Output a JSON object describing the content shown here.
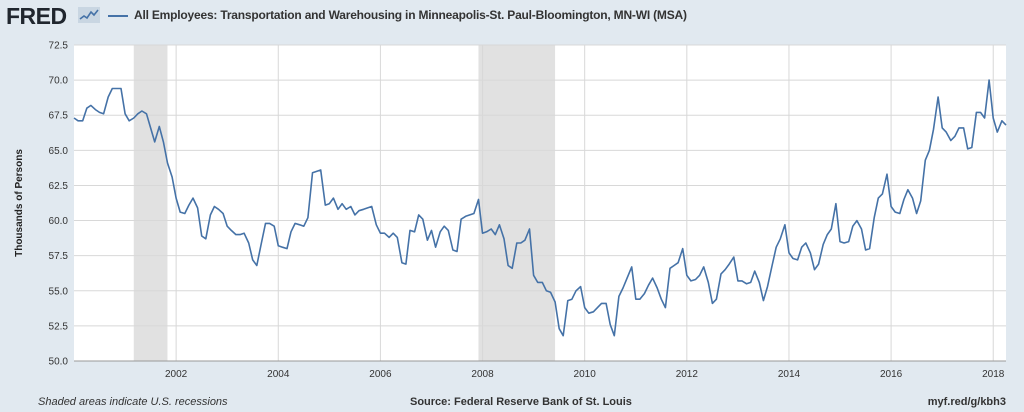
{
  "header": {
    "logo_text": "FRED",
    "logo_icon": "sparkline-icon",
    "legend_color": "#4572a7"
  },
  "footer": {
    "recession_note": "Shaded areas indicate U.S. recessions",
    "source": "Source: Federal Reserve Bank of St. Louis",
    "short_link": "myf.red/g/kbh3"
  },
  "chart_data": {
    "type": "line",
    "title": "All Employees: Transportation and Warehousing in Minneapolis-St. Paul-Bloomington, MN-WI (MSA)",
    "ylabel": "Thousands of Persons",
    "xlabel": "",
    "ylim": [
      50.0,
      72.5
    ],
    "xlim": [
      2000.0,
      2018.25
    ],
    "y_ticks": [
      "50.0",
      "52.5",
      "55.0",
      "57.5",
      "60.0",
      "62.5",
      "65.0",
      "67.5",
      "70.0",
      "72.5"
    ],
    "x_ticks": [
      "2002",
      "2004",
      "2006",
      "2008",
      "2010",
      "2012",
      "2014",
      "2016",
      "2018"
    ],
    "grid": true,
    "recessions": [
      [
        2001.17,
        2001.83
      ],
      [
        2007.92,
        2009.42
      ]
    ],
    "series": [
      {
        "color": "#4572a7",
        "points": [
          [
            2000.0,
            67.3
          ],
          [
            2000.08,
            67.1
          ],
          [
            2000.17,
            67.1
          ],
          [
            2000.25,
            68.0
          ],
          [
            2000.33,
            68.2
          ],
          [
            2000.42,
            67.9
          ],
          [
            2000.5,
            67.7
          ],
          [
            2000.58,
            67.6
          ],
          [
            2000.67,
            68.8
          ],
          [
            2000.75,
            69.4
          ],
          [
            2000.83,
            69.4
          ],
          [
            2000.92,
            69.4
          ],
          [
            2001.0,
            67.6
          ],
          [
            2001.08,
            67.1
          ],
          [
            2001.17,
            67.3
          ],
          [
            2001.25,
            67.6
          ],
          [
            2001.33,
            67.8
          ],
          [
            2001.42,
            67.6
          ],
          [
            2001.5,
            66.6
          ],
          [
            2001.58,
            65.6
          ],
          [
            2001.67,
            66.7
          ],
          [
            2001.75,
            65.6
          ],
          [
            2001.83,
            64.1
          ],
          [
            2001.92,
            63.1
          ],
          [
            2002.0,
            61.6
          ],
          [
            2002.08,
            60.6
          ],
          [
            2002.17,
            60.5
          ],
          [
            2002.25,
            61.1
          ],
          [
            2002.33,
            61.6
          ],
          [
            2002.42,
            60.9
          ],
          [
            2002.5,
            58.9
          ],
          [
            2002.58,
            58.7
          ],
          [
            2002.67,
            60.4
          ],
          [
            2002.75,
            61.0
          ],
          [
            2002.83,
            60.8
          ],
          [
            2002.92,
            60.5
          ],
          [
            2003.0,
            59.6
          ],
          [
            2003.08,
            59.3
          ],
          [
            2003.17,
            59.0
          ],
          [
            2003.25,
            59.0
          ],
          [
            2003.33,
            59.1
          ],
          [
            2003.42,
            58.4
          ],
          [
            2003.5,
            57.2
          ],
          [
            2003.58,
            56.8
          ],
          [
            2003.67,
            58.4
          ],
          [
            2003.75,
            59.8
          ],
          [
            2003.83,
            59.8
          ],
          [
            2003.92,
            59.6
          ],
          [
            2004.0,
            58.2
          ],
          [
            2004.08,
            58.1
          ],
          [
            2004.17,
            58.0
          ],
          [
            2004.25,
            59.2
          ],
          [
            2004.33,
            59.8
          ],
          [
            2004.42,
            59.7
          ],
          [
            2004.5,
            59.6
          ],
          [
            2004.58,
            60.2
          ],
          [
            2004.67,
            63.4
          ],
          [
            2004.75,
            63.5
          ],
          [
            2004.83,
            63.6
          ],
          [
            2004.92,
            61.1
          ],
          [
            2005.0,
            61.2
          ],
          [
            2005.08,
            61.6
          ],
          [
            2005.17,
            60.8
          ],
          [
            2005.25,
            61.2
          ],
          [
            2005.33,
            60.8
          ],
          [
            2005.42,
            61.0
          ],
          [
            2005.5,
            60.4
          ],
          [
            2005.58,
            60.7
          ],
          [
            2005.67,
            60.8
          ],
          [
            2005.75,
            60.9
          ],
          [
            2005.83,
            61.0
          ],
          [
            2005.92,
            59.7
          ],
          [
            2006.0,
            59.1
          ],
          [
            2006.08,
            59.1
          ],
          [
            2006.17,
            58.8
          ],
          [
            2006.25,
            59.1
          ],
          [
            2006.33,
            58.8
          ],
          [
            2006.42,
            57.0
          ],
          [
            2006.5,
            56.9
          ],
          [
            2006.58,
            59.3
          ],
          [
            2006.67,
            59.2
          ],
          [
            2006.75,
            60.4
          ],
          [
            2006.83,
            60.1
          ],
          [
            2006.92,
            58.6
          ],
          [
            2007.0,
            59.3
          ],
          [
            2007.08,
            58.1
          ],
          [
            2007.17,
            59.2
          ],
          [
            2007.25,
            59.6
          ],
          [
            2007.33,
            59.3
          ],
          [
            2007.42,
            57.9
          ],
          [
            2007.5,
            57.8
          ],
          [
            2007.58,
            60.1
          ],
          [
            2007.67,
            60.3
          ],
          [
            2007.75,
            60.4
          ],
          [
            2007.83,
            60.5
          ],
          [
            2007.92,
            61.5
          ],
          [
            2008.0,
            59.1
          ],
          [
            2008.08,
            59.2
          ],
          [
            2008.17,
            59.4
          ],
          [
            2008.25,
            59.0
          ],
          [
            2008.33,
            59.7
          ],
          [
            2008.42,
            58.7
          ],
          [
            2008.5,
            56.8
          ],
          [
            2008.58,
            56.6
          ],
          [
            2008.67,
            58.4
          ],
          [
            2008.75,
            58.4
          ],
          [
            2008.83,
            58.6
          ],
          [
            2008.92,
            59.4
          ],
          [
            2009.0,
            56.1
          ],
          [
            2009.08,
            55.6
          ],
          [
            2009.17,
            55.6
          ],
          [
            2009.25,
            55.0
          ],
          [
            2009.33,
            54.9
          ],
          [
            2009.42,
            54.2
          ],
          [
            2009.5,
            52.3
          ],
          [
            2009.58,
            51.8
          ],
          [
            2009.67,
            54.3
          ],
          [
            2009.75,
            54.4
          ],
          [
            2009.83,
            55.0
          ],
          [
            2009.92,
            55.3
          ],
          [
            2010.0,
            53.8
          ],
          [
            2010.08,
            53.4
          ],
          [
            2010.17,
            53.5
          ],
          [
            2010.25,
            53.8
          ],
          [
            2010.33,
            54.1
          ],
          [
            2010.42,
            54.1
          ],
          [
            2010.5,
            52.6
          ],
          [
            2010.58,
            51.8
          ],
          [
            2010.67,
            54.6
          ],
          [
            2010.75,
            55.2
          ],
          [
            2010.83,
            55.9
          ],
          [
            2010.92,
            56.7
          ],
          [
            2011.0,
            54.4
          ],
          [
            2011.08,
            54.4
          ],
          [
            2011.17,
            54.8
          ],
          [
            2011.25,
            55.4
          ],
          [
            2011.33,
            55.9
          ],
          [
            2011.42,
            55.2
          ],
          [
            2011.5,
            54.4
          ],
          [
            2011.58,
            53.8
          ],
          [
            2011.67,
            56.6
          ],
          [
            2011.75,
            56.8
          ],
          [
            2011.83,
            57.0
          ],
          [
            2011.92,
            58.0
          ],
          [
            2012.0,
            56.1
          ],
          [
            2012.08,
            55.7
          ],
          [
            2012.17,
            55.8
          ],
          [
            2012.25,
            56.1
          ],
          [
            2012.33,
            56.7
          ],
          [
            2012.42,
            55.6
          ],
          [
            2012.5,
            54.1
          ],
          [
            2012.58,
            54.4
          ],
          [
            2012.67,
            56.2
          ],
          [
            2012.75,
            56.5
          ],
          [
            2012.83,
            56.9
          ],
          [
            2012.92,
            57.4
          ],
          [
            2013.0,
            55.7
          ],
          [
            2013.08,
            55.7
          ],
          [
            2013.17,
            55.5
          ],
          [
            2013.25,
            55.6
          ],
          [
            2013.33,
            56.4
          ],
          [
            2013.42,
            55.6
          ],
          [
            2013.5,
            54.3
          ],
          [
            2013.58,
            55.3
          ],
          [
            2013.67,
            56.8
          ],
          [
            2013.75,
            58.1
          ],
          [
            2013.83,
            58.7
          ],
          [
            2013.92,
            59.7
          ],
          [
            2014.0,
            57.7
          ],
          [
            2014.08,
            57.3
          ],
          [
            2014.17,
            57.2
          ],
          [
            2014.25,
            58.1
          ],
          [
            2014.33,
            58.4
          ],
          [
            2014.42,
            57.7
          ],
          [
            2014.5,
            56.5
          ],
          [
            2014.58,
            56.9
          ],
          [
            2014.67,
            58.3
          ],
          [
            2014.75,
            59.0
          ],
          [
            2014.83,
            59.4
          ],
          [
            2014.92,
            61.2
          ],
          [
            2015.0,
            58.5
          ],
          [
            2015.08,
            58.4
          ],
          [
            2015.17,
            58.5
          ],
          [
            2015.25,
            59.6
          ],
          [
            2015.33,
            60.0
          ],
          [
            2015.42,
            59.4
          ],
          [
            2015.5,
            57.9
          ],
          [
            2015.58,
            58.0
          ],
          [
            2015.67,
            60.2
          ],
          [
            2015.75,
            61.6
          ],
          [
            2015.83,
            61.9
          ],
          [
            2015.92,
            63.3
          ],
          [
            2016.0,
            61.0
          ],
          [
            2016.08,
            60.6
          ],
          [
            2016.17,
            60.5
          ],
          [
            2016.25,
            61.5
          ],
          [
            2016.33,
            62.2
          ],
          [
            2016.42,
            61.6
          ],
          [
            2016.5,
            60.5
          ],
          [
            2016.58,
            61.4
          ],
          [
            2016.67,
            64.3
          ],
          [
            2016.75,
            65.0
          ],
          [
            2016.83,
            66.5
          ],
          [
            2016.92,
            68.8
          ],
          [
            2017.0,
            66.6
          ],
          [
            2017.08,
            66.3
          ],
          [
            2017.17,
            65.7
          ],
          [
            2017.25,
            66.0
          ],
          [
            2017.33,
            66.6
          ],
          [
            2017.42,
            66.6
          ],
          [
            2017.5,
            65.1
          ],
          [
            2017.58,
            65.2
          ],
          [
            2017.67,
            67.7
          ],
          [
            2017.75,
            67.7
          ],
          [
            2017.83,
            67.3
          ],
          [
            2017.92,
            70.0
          ],
          [
            2018.0,
            67.3
          ],
          [
            2018.08,
            66.3
          ],
          [
            2018.17,
            67.1
          ],
          [
            2018.25,
            66.8
          ]
        ]
      }
    ]
  }
}
